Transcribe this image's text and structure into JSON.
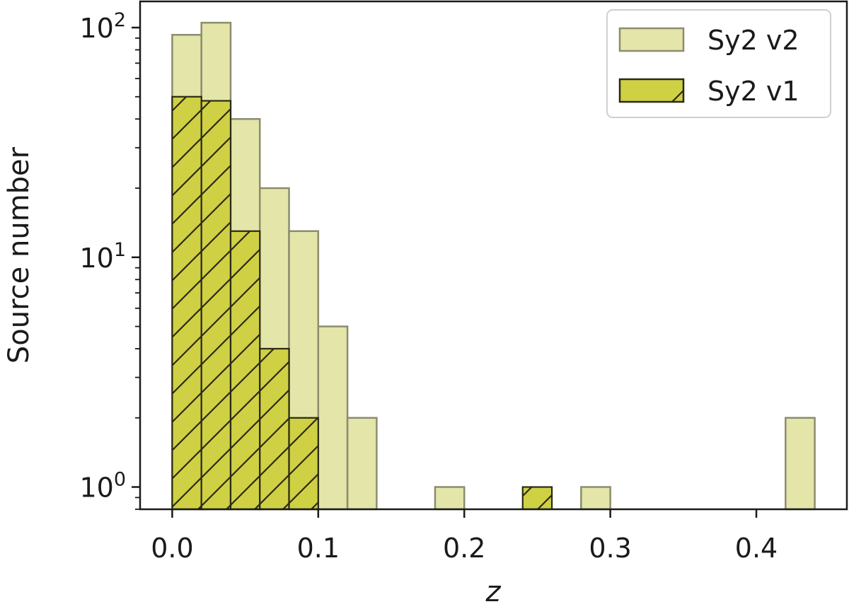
{
  "chart_data": {
    "type": "bar",
    "title": "",
    "xlabel": "z",
    "ylabel": "Source number",
    "yscale": "log",
    "xlim": [
      -0.022,
      0.462
    ],
    "ylim": [
      0.8,
      130
    ],
    "x_ticks": [
      0.0,
      0.1,
      0.2,
      0.3,
      0.4
    ],
    "x_tick_labels": [
      "0.0",
      "0.1",
      "0.2",
      "0.3",
      "0.4"
    ],
    "y_ticks": [
      {
        "value": 1,
        "base": "10",
        "exp": "0"
      },
      {
        "value": 10,
        "base": "10",
        "exp": "1"
      },
      {
        "value": 100,
        "base": "10",
        "exp": "2"
      }
    ],
    "bin_width": 0.02,
    "grid": false,
    "legend": {
      "position": "top-right"
    },
    "series": [
      {
        "name": "Sy2 v2",
        "color": "#e3e6a8",
        "edge": "#8c8c70",
        "hatch": false,
        "bins": [
          {
            "x0": 0.0,
            "value": 93
          },
          {
            "x0": 0.02,
            "value": 105
          },
          {
            "x0": 0.04,
            "value": 40
          },
          {
            "x0": 0.06,
            "value": 20
          },
          {
            "x0": 0.08,
            "value": 13
          },
          {
            "x0": 0.1,
            "value": 5
          },
          {
            "x0": 0.12,
            "value": 2
          },
          {
            "x0": 0.18,
            "value": 1
          },
          {
            "x0": 0.28,
            "value": 1
          },
          {
            "x0": 0.42,
            "value": 2
          }
        ]
      },
      {
        "name": "Sy2 v1",
        "color": "#cfd044",
        "edge": "#2a2a14",
        "hatch": true,
        "bins": [
          {
            "x0": 0.0,
            "value": 50
          },
          {
            "x0": 0.02,
            "value": 48
          },
          {
            "x0": 0.04,
            "value": 13
          },
          {
            "x0": 0.06,
            "value": 4
          },
          {
            "x0": 0.08,
            "value": 2
          },
          {
            "x0": 0.24,
            "value": 1
          }
        ]
      }
    ]
  }
}
